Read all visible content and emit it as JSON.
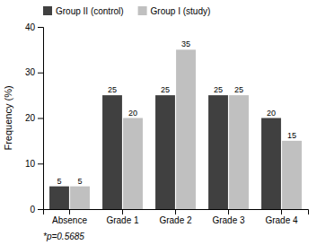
{
  "chart_data": {
    "type": "bar",
    "categories": [
      "Absence",
      "Grade 1",
      "Grade 2",
      "Grade 3",
      "Grade 4"
    ],
    "series": [
      {
        "name": "Group II (control)",
        "color": "#404040",
        "values": [
          5,
          25,
          25,
          25,
          20
        ]
      },
      {
        "name": "Group I (study)",
        "color": "#c0c0c0",
        "values": [
          5,
          20,
          35,
          25,
          15
        ]
      }
    ],
    "ylabel": "Frequency (%)",
    "ylim": [
      0,
      40
    ],
    "yticks": [
      0,
      10,
      20,
      30,
      40
    ],
    "data_labels": true,
    "grid": false,
    "legend": "top-left",
    "annotation": "*p=0.5685"
  }
}
